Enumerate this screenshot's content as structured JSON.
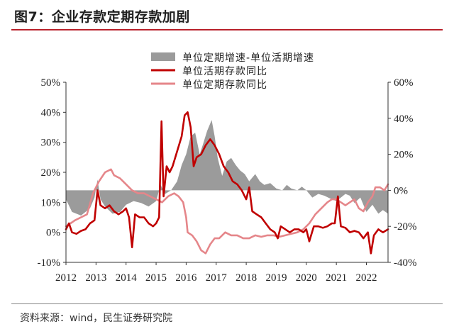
{
  "title": "图7：企业存款定期存款加剧",
  "source": "资料来源：wind，民生证券研究院",
  "chart_data": {
    "type": "line",
    "x_ticks": [
      "2012",
      "2013",
      "2014",
      "2015",
      "2016",
      "2017",
      "2018",
      "2019",
      "2020",
      "2021",
      "2022"
    ],
    "x_range": [
      2012.0,
      2022.72
    ],
    "left_axis": {
      "range": [
        -10,
        50
      ],
      "ticks": [
        "-10%",
        "0%",
        "10%",
        "20%",
        "30%",
        "40%",
        "50%"
      ]
    },
    "right_axis": {
      "range": [
        -40,
        60
      ],
      "ticks": [
        "-40%",
        "-20%",
        "0%",
        "20%",
        "40%",
        "60%"
      ]
    },
    "colors": {
      "area": "#9b9b9b",
      "demand": "#c00000",
      "time": "#e5868a"
    },
    "legend_position": "top-center",
    "series": [
      {
        "name": "单位定期增速-单位活期增速",
        "axis": "right",
        "kind": "area",
        "points": [
          [
            2012.0,
            -5
          ],
          [
            2012.2,
            -12
          ],
          [
            2012.5,
            -14
          ],
          [
            2012.8,
            -10
          ],
          [
            2012.95,
            -4
          ],
          [
            2013.05,
            6
          ],
          [
            2013.15,
            -5
          ],
          [
            2013.3,
            -9
          ],
          [
            2013.55,
            -13
          ],
          [
            2013.8,
            -12
          ],
          [
            2014.0,
            -8
          ],
          [
            2014.25,
            -6
          ],
          [
            2014.5,
            -7
          ],
          [
            2014.75,
            -9
          ],
          [
            2015.0,
            -6
          ],
          [
            2015.15,
            3
          ],
          [
            2015.3,
            -2
          ],
          [
            2015.5,
            0
          ],
          [
            2015.7,
            5
          ],
          [
            2015.85,
            14
          ],
          [
            2016.0,
            20
          ],
          [
            2016.15,
            30
          ],
          [
            2016.3,
            32
          ],
          [
            2016.45,
            20
          ],
          [
            2016.55,
            25
          ],
          [
            2016.7,
            33
          ],
          [
            2016.85,
            39
          ],
          [
            2016.95,
            30
          ],
          [
            2017.05,
            18
          ],
          [
            2017.2,
            8
          ],
          [
            2017.35,
            16
          ],
          [
            2017.5,
            18
          ],
          [
            2017.65,
            14
          ],
          [
            2017.8,
            11
          ],
          [
            2017.95,
            9
          ],
          [
            2018.1,
            5
          ],
          [
            2018.3,
            9
          ],
          [
            2018.45,
            5
          ],
          [
            2018.6,
            3
          ],
          [
            2018.8,
            4
          ],
          [
            2019.0,
            1
          ],
          [
            2019.2,
            0
          ],
          [
            2019.35,
            3
          ],
          [
            2019.5,
            1
          ],
          [
            2019.7,
            0
          ],
          [
            2019.85,
            2
          ],
          [
            2020.0,
            0
          ],
          [
            2020.2,
            -4
          ],
          [
            2020.4,
            -2
          ],
          [
            2020.6,
            -3
          ],
          [
            2020.85,
            -5
          ],
          [
            2021.0,
            -6
          ],
          [
            2021.15,
            -4
          ],
          [
            2021.3,
            -2
          ],
          [
            2021.45,
            -3
          ],
          [
            2021.6,
            -7
          ],
          [
            2021.8,
            -4
          ],
          [
            2022.0,
            -12
          ],
          [
            2022.2,
            -8
          ],
          [
            2022.4,
            -13
          ],
          [
            2022.55,
            -11
          ],
          [
            2022.72,
            -13
          ]
        ]
      },
      {
        "name": "单位活期存款同比",
        "axis": "left",
        "kind": "line",
        "points": [
          [
            2012.0,
            1
          ],
          [
            2012.1,
            3
          ],
          [
            2012.2,
            0
          ],
          [
            2012.35,
            -0.5
          ],
          [
            2012.5,
            0.5
          ],
          [
            2012.65,
            1
          ],
          [
            2012.8,
            3
          ],
          [
            2012.95,
            4
          ],
          [
            2013.05,
            14
          ],
          [
            2013.15,
            9
          ],
          [
            2013.3,
            8
          ],
          [
            2013.45,
            9
          ],
          [
            2013.6,
            7
          ],
          [
            2013.75,
            6
          ],
          [
            2013.9,
            7
          ],
          [
            2014.0,
            8
          ],
          [
            2014.1,
            5
          ],
          [
            2014.2,
            -5
          ],
          [
            2014.3,
            6
          ],
          [
            2014.45,
            5
          ],
          [
            2014.6,
            5
          ],
          [
            2014.75,
            3
          ],
          [
            2014.9,
            2
          ],
          [
            2015.0,
            3
          ],
          [
            2015.1,
            5
          ],
          [
            2015.18,
            37
          ],
          [
            2015.25,
            12
          ],
          [
            2015.35,
            22
          ],
          [
            2015.45,
            20
          ],
          [
            2015.55,
            22
          ],
          [
            2015.7,
            27
          ],
          [
            2015.85,
            32
          ],
          [
            2015.95,
            39
          ],
          [
            2016.05,
            40
          ],
          [
            2016.15,
            35
          ],
          [
            2016.25,
            22
          ],
          [
            2016.35,
            25
          ],
          [
            2016.5,
            26
          ],
          [
            2016.65,
            29
          ],
          [
            2016.8,
            31
          ],
          [
            2016.95,
            29
          ],
          [
            2017.1,
            26
          ],
          [
            2017.25,
            22
          ],
          [
            2017.4,
            20
          ],
          [
            2017.55,
            17
          ],
          [
            2017.7,
            16
          ],
          [
            2017.85,
            14
          ],
          [
            2018.0,
            11
          ],
          [
            2018.1,
            15
          ],
          [
            2018.2,
            7
          ],
          [
            2018.35,
            6
          ],
          [
            2018.5,
            5
          ],
          [
            2018.65,
            3
          ],
          [
            2018.8,
            1
          ],
          [
            2018.95,
            0
          ],
          [
            2019.05,
            -2
          ],
          [
            2019.15,
            2
          ],
          [
            2019.3,
            1
          ],
          [
            2019.45,
            0
          ],
          [
            2019.6,
            1
          ],
          [
            2019.75,
            1
          ],
          [
            2019.9,
            0
          ],
          [
            2020.0,
            1
          ],
          [
            2020.1,
            -3
          ],
          [
            2020.25,
            2
          ],
          [
            2020.4,
            2
          ],
          [
            2020.55,
            1.5
          ],
          [
            2020.7,
            2
          ],
          [
            2020.85,
            3
          ],
          [
            2020.95,
            3
          ],
          [
            2021.05,
            12
          ],
          [
            2021.15,
            2
          ],
          [
            2021.3,
            1.5
          ],
          [
            2021.45,
            0
          ],
          [
            2021.6,
            0.5
          ],
          [
            2021.75,
            0
          ],
          [
            2021.9,
            -2
          ],
          [
            2022.05,
            0
          ],
          [
            2022.15,
            -7
          ],
          [
            2022.25,
            -1
          ],
          [
            2022.4,
            1
          ],
          [
            2022.55,
            0
          ],
          [
            2022.72,
            1
          ]
        ]
      },
      {
        "name": "单位定期存款同比",
        "axis": "left",
        "kind": "line",
        "points": [
          [
            2012.0,
            2
          ],
          [
            2012.15,
            3
          ],
          [
            2012.3,
            4
          ],
          [
            2012.5,
            5
          ],
          [
            2012.7,
            6
          ],
          [
            2012.9,
            13
          ],
          [
            2013.1,
            17
          ],
          [
            2013.3,
            20
          ],
          [
            2013.5,
            21
          ],
          [
            2013.6,
            19
          ],
          [
            2013.8,
            18
          ],
          [
            2014.0,
            16
          ],
          [
            2014.2,
            14
          ],
          [
            2014.4,
            13
          ],
          [
            2014.6,
            13
          ],
          [
            2014.8,
            12
          ],
          [
            2015.0,
            11
          ],
          [
            2015.2,
            10
          ],
          [
            2015.4,
            12
          ],
          [
            2015.6,
            13
          ],
          [
            2015.75,
            12
          ],
          [
            2015.9,
            10
          ],
          [
            2016.0,
            5
          ],
          [
            2016.05,
            0
          ],
          [
            2016.2,
            -1
          ],
          [
            2016.35,
            -3
          ],
          [
            2016.5,
            -6
          ],
          [
            2016.65,
            -7
          ],
          [
            2016.8,
            -4
          ],
          [
            2016.95,
            -2
          ],
          [
            2017.1,
            -2
          ],
          [
            2017.3,
            0
          ],
          [
            2017.5,
            -1
          ],
          [
            2017.7,
            -1
          ],
          [
            2017.9,
            -2
          ],
          [
            2018.1,
            -2
          ],
          [
            2018.3,
            -1
          ],
          [
            2018.5,
            -1.5
          ],
          [
            2018.7,
            -1
          ],
          [
            2018.9,
            -1
          ],
          [
            2019.1,
            -1.5
          ],
          [
            2019.3,
            -1
          ],
          [
            2019.5,
            -0.5
          ],
          [
            2019.7,
            0
          ],
          [
            2019.9,
            1
          ],
          [
            2020.1,
            3
          ],
          [
            2020.3,
            6
          ],
          [
            2020.5,
            8
          ],
          [
            2020.7,
            10
          ],
          [
            2020.85,
            11
          ],
          [
            2021.0,
            11
          ],
          [
            2021.15,
            10
          ],
          [
            2021.3,
            9
          ],
          [
            2021.45,
            10
          ],
          [
            2021.6,
            11
          ],
          [
            2021.75,
            8
          ],
          [
            2021.9,
            7
          ],
          [
            2022.05,
            10
          ],
          [
            2022.2,
            12
          ],
          [
            2022.3,
            15
          ],
          [
            2022.45,
            15
          ],
          [
            2022.6,
            14
          ],
          [
            2022.72,
            16
          ]
        ]
      }
    ]
  }
}
